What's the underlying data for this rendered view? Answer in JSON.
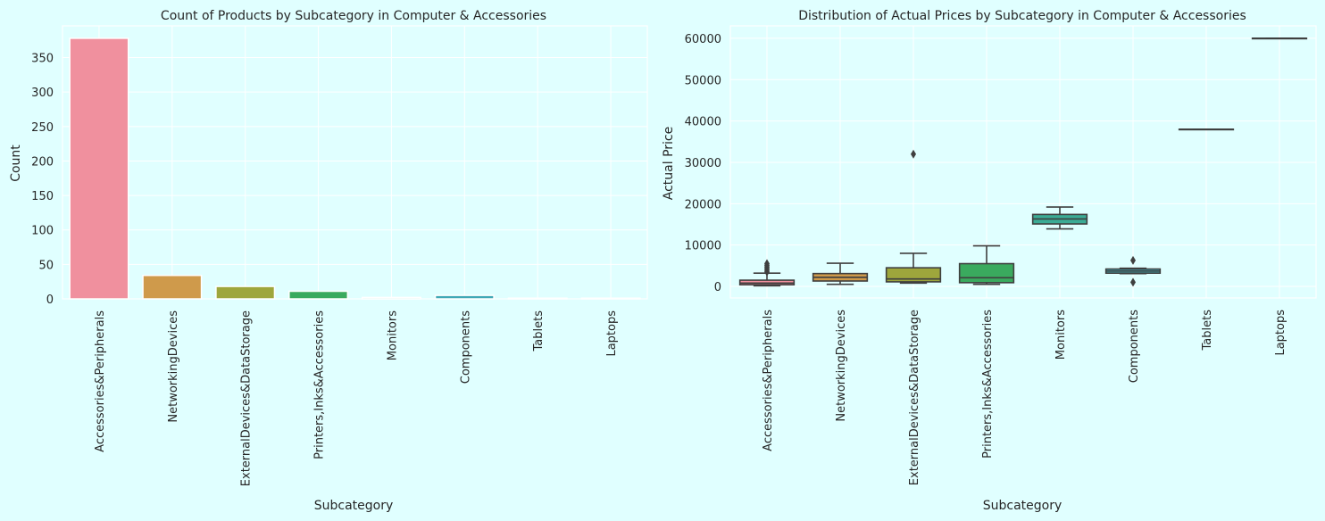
{
  "colors": {
    "figure_bg": "#e0ffff",
    "grid": "#ffffff",
    "text": "#262626",
    "box_line": "#3f3f3f",
    "palette": [
      "#f0909e",
      "#cf9a4b",
      "#9ea63c",
      "#3aaa5e",
      "#3bab95",
      "#40a8b5",
      "#8aa5e6",
      "#e58ad4"
    ]
  },
  "chart_data": [
    {
      "type": "bar",
      "title": "Count of Products by Subcategory in Computer & Accessories",
      "xlabel": "Subcategory",
      "ylabel": "Count",
      "categories": [
        "Accessories&Peripherals",
        "NetworkingDevices",
        "ExternalDevices&DataStorage",
        "Printers,Inks&Accessories",
        "Monitors",
        "Components",
        "Tablets",
        "Laptops"
      ],
      "values": [
        378,
        34,
        18,
        11,
        2,
        5,
        1,
        1
      ],
      "ylim": [
        0,
        396
      ],
      "yticks": [
        0,
        50,
        100,
        150,
        200,
        250,
        300,
        350
      ],
      "grid": true,
      "legend": "none"
    },
    {
      "type": "box",
      "title": "Distribution of Actual Prices by Subcategory in Computer & Accessories",
      "xlabel": "Subcategory",
      "ylabel": "Actual Price",
      "categories": [
        "Accessories&Peripherals",
        "NetworkingDevices",
        "ExternalDevices&DataStorage",
        "Printers,Inks&Accessories",
        "Monitors",
        "Components",
        "Tablets",
        "Laptops"
      ],
      "boxes": [
        {
          "whislo": 150,
          "q1": 400,
          "med": 800,
          "q3": 1500,
          "whishi": 3200,
          "fliers": [
            3500,
            3900,
            4300,
            4700,
            5100,
            5500
          ]
        },
        {
          "whislo": 500,
          "q1": 1300,
          "med": 2200,
          "q3": 3100,
          "whishi": 5600,
          "fliers": []
        },
        {
          "whislo": 800,
          "q1": 1100,
          "med": 1800,
          "q3": 4500,
          "whishi": 8000,
          "fliers": [
            32000
          ]
        },
        {
          "whislo": 500,
          "q1": 900,
          "med": 2100,
          "q3": 5500,
          "whishi": 9800,
          "fliers": []
        },
        {
          "whislo": 13900,
          "q1": 15100,
          "med": 16300,
          "q3": 17400,
          "whishi": 19200,
          "fliers": []
        },
        {
          "whislo": 3100,
          "q1": 3200,
          "med": 3700,
          "q3": 4200,
          "whishi": 4400,
          "fliers": [
            1000,
            6300
          ]
        },
        {
          "whislo": 38000,
          "q1": 38000,
          "med": 38000,
          "q3": 38000,
          "whishi": 38000,
          "fliers": []
        },
        {
          "whislo": 60000,
          "q1": 60000,
          "med": 60000,
          "q3": 60000,
          "whishi": 60000,
          "fliers": []
        }
      ],
      "ylim": [
        -2800,
        63000
      ],
      "yticks": [
        0,
        10000,
        20000,
        30000,
        40000,
        50000,
        60000
      ],
      "grid": true,
      "legend": "none"
    }
  ]
}
